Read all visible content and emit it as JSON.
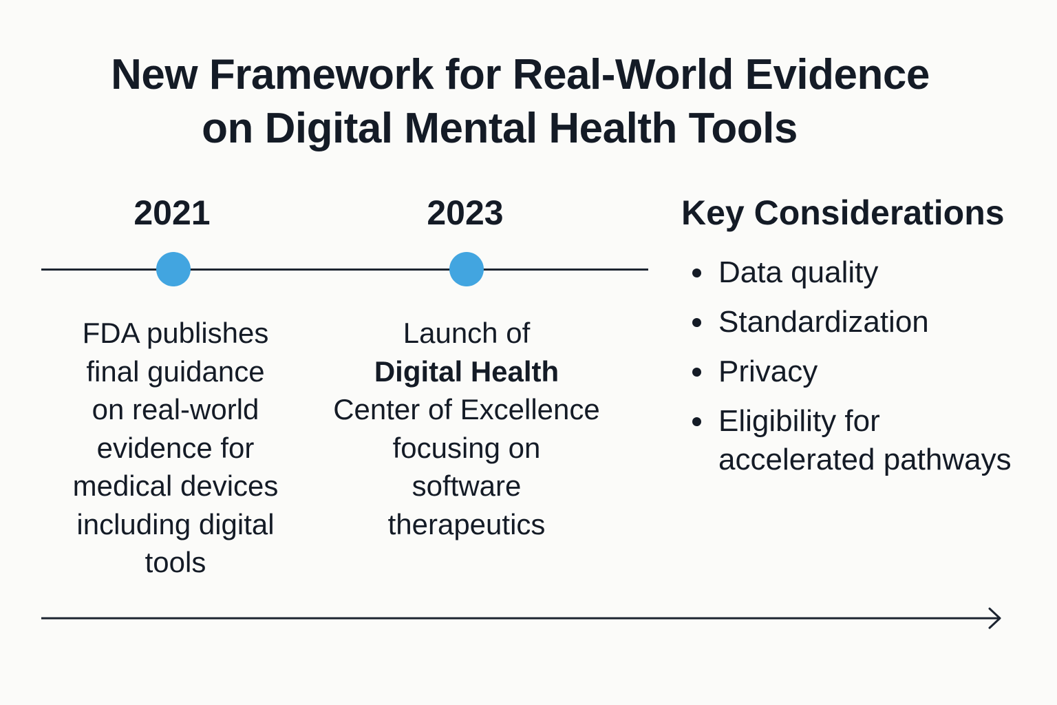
{
  "title": {
    "line1": "New Framework for Real-World Evidence",
    "line2": "on Digital Mental Health Tools"
  },
  "timeline": [
    {
      "year": "2021",
      "lines": [
        "FDA publishes",
        "final guidance",
        "on real-world",
        "evidence for",
        "medical devices",
        "including digital",
        "tools"
      ]
    },
    {
      "year": "2023",
      "lines": [
        "Launch of",
        "Digital Health",
        "Center of Excellence",
        "focusing on",
        "software",
        "therapeutics"
      ]
    }
  ],
  "key_considerations": {
    "heading": "Key Considerations",
    "items": [
      "Data quality",
      "Standardization",
      "Privacy",
      "Eligibility for accelerated pathways"
    ],
    "item4_line1": "Eligibility for",
    "item4_line2": "accelerated pathways"
  },
  "colors": {
    "dot": "#42a5e0",
    "text": "#141b26",
    "background": "#fbfbf9"
  }
}
